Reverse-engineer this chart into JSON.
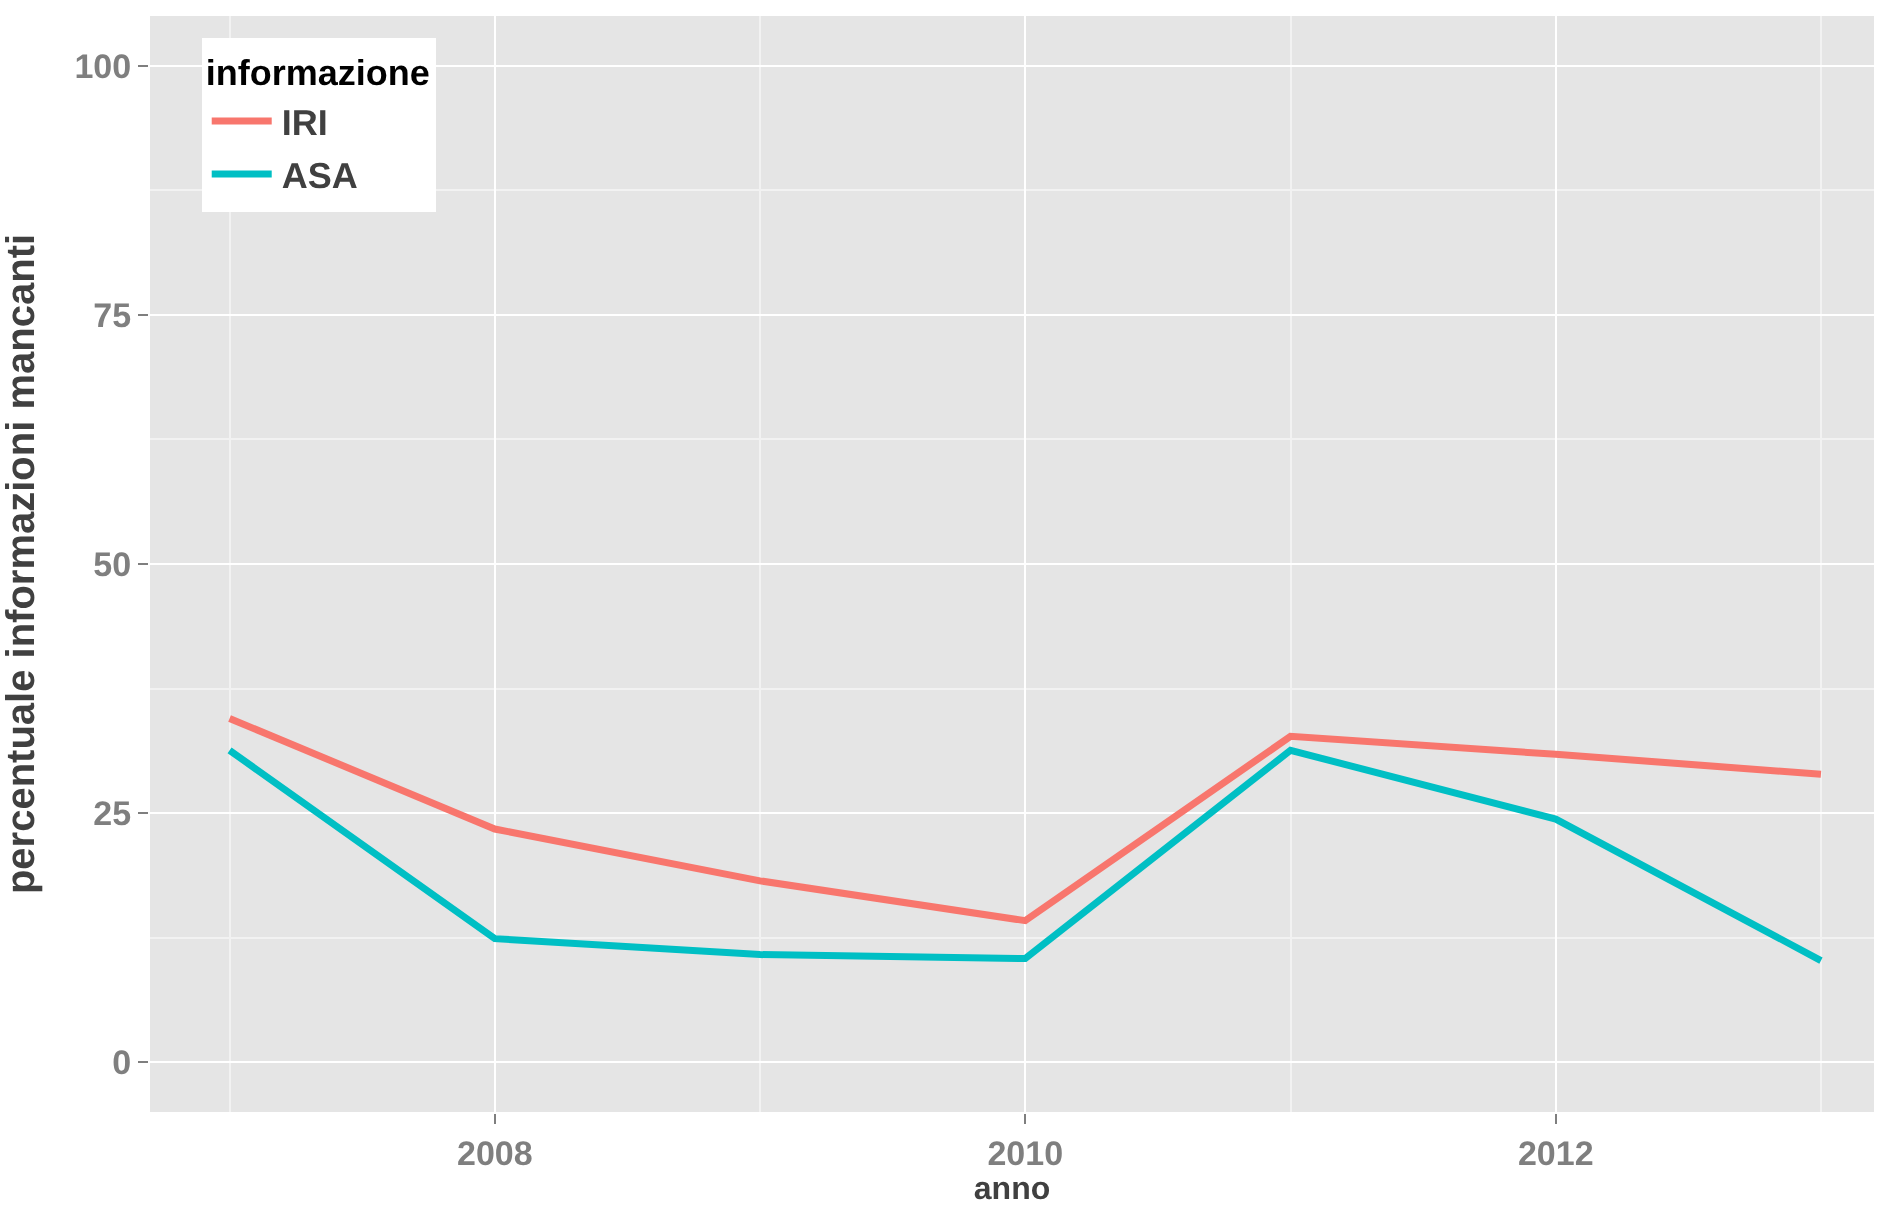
{
  "chart_data": {
    "type": "line",
    "xlabel": "anno",
    "ylabel": "percentuale informazioni mancanti",
    "legend_title": "informazione",
    "x": [
      2007,
      2008,
      2009,
      2010,
      2011,
      2012,
      2013
    ],
    "series": [
      {
        "name": "IRI",
        "color": "#f8766d",
        "values": [
          34.5,
          23.4,
          18.2,
          14.2,
          32.7,
          30.9,
          28.9
        ]
      },
      {
        "name": "ASA",
        "color": "#00bfc4",
        "values": [
          31.3,
          12.4,
          10.8,
          10.4,
          31.3,
          24.4,
          10.2
        ]
      }
    ],
    "xlim": [
      2006.7,
      2013.2
    ],
    "xticks": [
      2008,
      2010,
      2012
    ],
    "ylim": [
      -5,
      105
    ],
    "yticks": [
      0,
      25,
      50,
      75,
      100
    ],
    "grid": true,
    "legend": "top left",
    "marker": "none",
    "line_style": "solid"
  }
}
